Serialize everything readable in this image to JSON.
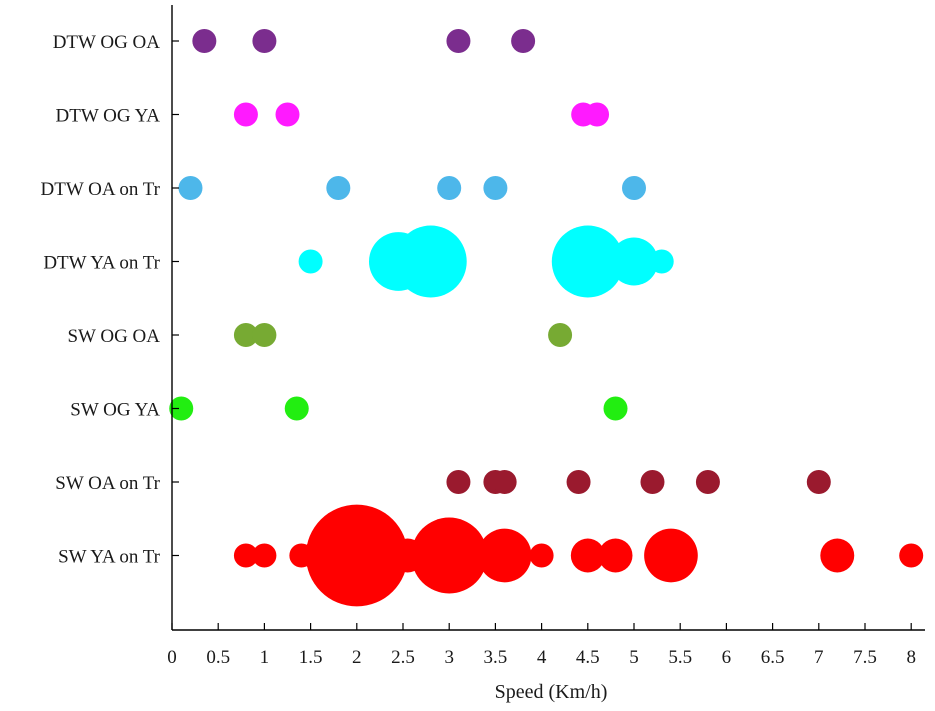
{
  "chart_data": {
    "type": "scatter",
    "xlabel": "Speed (Km/h)",
    "ylabel": "",
    "xlim": [
      0,
      8.2
    ],
    "x_ticks": [
      "0",
      "0.5",
      "1",
      "1.5",
      "2",
      "2.5",
      "3",
      "3.5",
      "4",
      "4.5",
      "5",
      "5.5",
      "6",
      "6.5",
      "7",
      "7.5",
      "8"
    ],
    "grid": false,
    "categories": [
      "DTW OG OA",
      "DTW OG YA",
      "DTW OA on Tr",
      "DTW YA on Tr",
      "SW OG OA",
      "SW OG YA",
      "SW OA on Tr",
      "SW YA on Tr"
    ],
    "series": [
      {
        "category": "DTW OG OA",
        "color": "#7b2d8e",
        "points": [
          {
            "x": 0.35,
            "size": 1
          },
          {
            "x": 1.0,
            "size": 1
          },
          {
            "x": 3.1,
            "size": 1
          },
          {
            "x": 3.8,
            "size": 1
          }
        ]
      },
      {
        "category": "DTW OG YA",
        "color": "#ff1aff",
        "points": [
          {
            "x": 0.8,
            "size": 1
          },
          {
            "x": 1.25,
            "size": 1
          },
          {
            "x": 4.45,
            "size": 1
          },
          {
            "x": 4.6,
            "size": 1
          }
        ]
      },
      {
        "category": "DTW OA on Tr",
        "color": "#4db7ea",
        "points": [
          {
            "x": 0.2,
            "size": 1
          },
          {
            "x": 1.8,
            "size": 1
          },
          {
            "x": 3.0,
            "size": 1
          },
          {
            "x": 3.5,
            "size": 1
          },
          {
            "x": 5.0,
            "size": 1
          }
        ]
      },
      {
        "category": "DTW YA on Tr",
        "color": "#00ffff",
        "points": [
          {
            "x": 1.5,
            "size": 1
          },
          {
            "x": 2.45,
            "size": 6
          },
          {
            "x": 2.8,
            "size": 9
          },
          {
            "x": 4.5,
            "size": 9
          },
          {
            "x": 5.0,
            "size": 4
          },
          {
            "x": 5.3,
            "size": 1
          }
        ]
      },
      {
        "category": "SW OG OA",
        "color": "#77aa33",
        "points": [
          {
            "x": 0.8,
            "size": 1
          },
          {
            "x": 1.0,
            "size": 1
          },
          {
            "x": 4.2,
            "size": 1
          }
        ]
      },
      {
        "category": "SW OG YA",
        "color": "#22ee11",
        "points": [
          {
            "x": 0.1,
            "size": 1
          },
          {
            "x": 1.35,
            "size": 1
          },
          {
            "x": 4.8,
            "size": 1
          }
        ]
      },
      {
        "category": "SW OA on Tr",
        "color": "#9a1a2e",
        "points": [
          {
            "x": 3.1,
            "size": 1
          },
          {
            "x": 3.5,
            "size": 1
          },
          {
            "x": 3.6,
            "size": 1
          },
          {
            "x": 4.4,
            "size": 1
          },
          {
            "x": 5.2,
            "size": 1
          },
          {
            "x": 5.8,
            "size": 1
          },
          {
            "x": 7.0,
            "size": 1
          }
        ]
      },
      {
        "category": "SW YA on Tr",
        "color": "#ff0000",
        "points": [
          {
            "x": 0.8,
            "size": 1
          },
          {
            "x": 1.0,
            "size": 1
          },
          {
            "x": 1.4,
            "size": 1
          },
          {
            "x": 1.6,
            "size": 2
          },
          {
            "x": 2.0,
            "size": 18
          },
          {
            "x": 2.55,
            "size": 2
          },
          {
            "x": 3.0,
            "size": 10
          },
          {
            "x": 3.6,
            "size": 5
          },
          {
            "x": 4.0,
            "size": 1
          },
          {
            "x": 4.5,
            "size": 2
          },
          {
            "x": 4.8,
            "size": 2
          },
          {
            "x": 5.4,
            "size": 5
          },
          {
            "x": 7.2,
            "size": 2
          },
          {
            "x": 8.0,
            "size": 1
          }
        ]
      }
    ]
  }
}
